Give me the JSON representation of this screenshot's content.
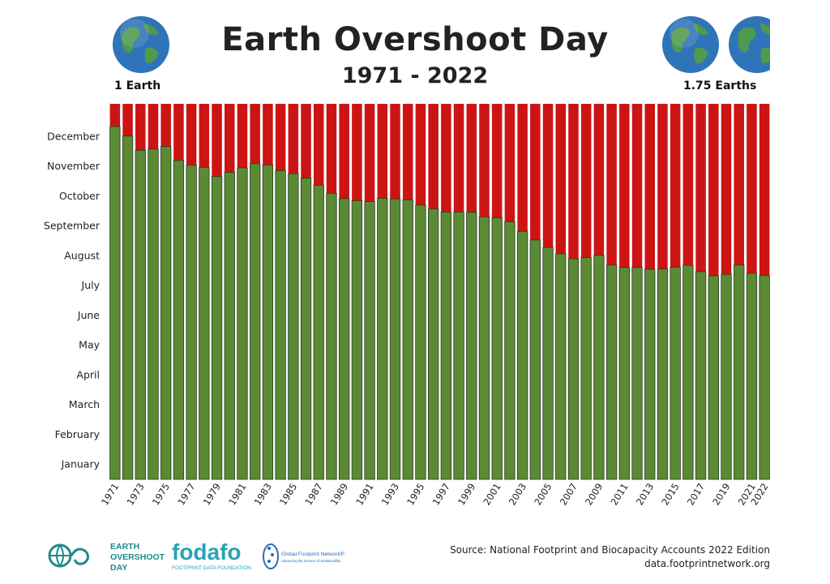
{
  "header": {
    "title": "Earth Overshoot Day",
    "subtitle": "1971 - 2022",
    "left_globe_label": "1 Earth",
    "right_globe_label": "1.75 Earths"
  },
  "colors": {
    "overshoot": "#cc1414",
    "within_budget": "#5b8a35",
    "bar_border": "#2a3a1c",
    "ocean": "#2f73b8",
    "land": "#4f9a4c"
  },
  "chart_data": {
    "type": "bar",
    "stacked": true,
    "x": [
      1971,
      1972,
      1973,
      1974,
      1975,
      1976,
      1977,
      1978,
      1979,
      1980,
      1981,
      1982,
      1983,
      1984,
      1985,
      1986,
      1987,
      1988,
      1989,
      1990,
      1991,
      1992,
      1993,
      1994,
      1995,
      1996,
      1997,
      1998,
      1999,
      2000,
      2001,
      2002,
      2003,
      2004,
      2005,
      2006,
      2007,
      2008,
      2009,
      2010,
      2011,
      2012,
      2013,
      2014,
      2015,
      2016,
      2017,
      2018,
      2019,
      2020,
      2021,
      2022
    ],
    "x_tick_labels": [
      "1971",
      "1973",
      "1975",
      "1977",
      "1979",
      "1981",
      "1983",
      "1985",
      "1987",
      "1989",
      "1991",
      "1993",
      "1995",
      "1997",
      "1999",
      "2001",
      "2003",
      "2005",
      "2007",
      "2009",
      "2011",
      "2013",
      "2015",
      "2017",
      "2019",
      "2021",
      "2022"
    ],
    "overshoot_month": [
      11.84,
      11.52,
      11.04,
      11.08,
      11.17,
      10.7,
      10.54,
      10.47,
      10.16,
      10.3,
      10.45,
      10.59,
      10.55,
      10.36,
      10.26,
      10.11,
      9.87,
      9.6,
      9.42,
      9.35,
      9.32,
      9.43,
      9.41,
      9.38,
      9.2,
      9.08,
      8.97,
      8.97,
      8.96,
      8.81,
      8.77,
      8.64,
      8.32,
      8.03,
      7.78,
      7.57,
      7.4,
      7.44,
      7.52,
      7.19,
      7.11,
      7.11,
      7.05,
      7.06,
      7.12,
      7.18,
      6.97,
      6.83,
      6.88,
      7.19,
      6.91,
      6.84
    ],
    "y_tick_labels": [
      "January",
      "February",
      "March",
      "April",
      "May",
      "June",
      "July",
      "August",
      "September",
      "October",
      "November",
      "December"
    ],
    "ylim": [
      0,
      12.6
    ],
    "series": [
      {
        "name": "",
        "color": "#5b8a35"
      },
      {
        "name": "",
        "color": "#cc1414"
      }
    ],
    "grid": false
  },
  "footer": {
    "source_line1": "Source: National Footprint and Biocapacity Accounts 2022 Edition",
    "source_line2": "data.footprintnetwork.org",
    "logo1_line1": "EARTH",
    "logo1_line2": "OVERSHOOT",
    "logo1_line3": "DAY",
    "logo2_name": "fodafo",
    "logo2_sub": "FOOTPRINT DATA FOUNDATION",
    "logo3_name": "Global Footprint Network®",
    "logo3_sub": "Advancing the Science of Sustainability"
  }
}
